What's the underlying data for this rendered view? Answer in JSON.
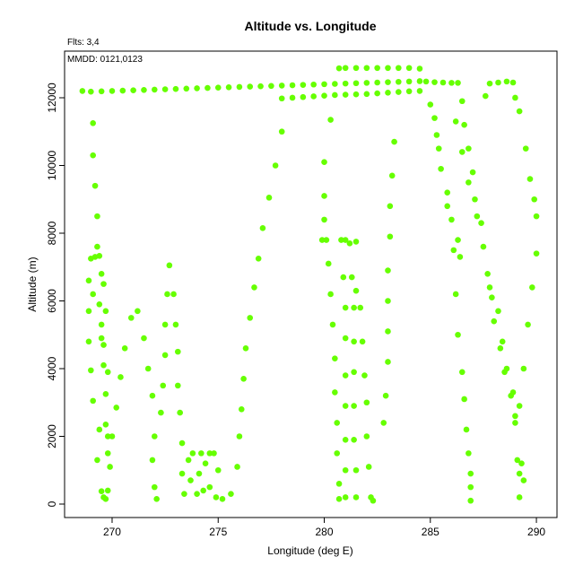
{
  "chart_data": {
    "type": "scatter",
    "title": "Altitude vs. Longitude",
    "annotations": [
      "Flts: 3,4",
      "MMDD: 0121,0123"
    ],
    "x_label": "Longitude (deg E)",
    "y_label": "Altitude (m)",
    "color": "#66ff00",
    "xlim": [
      267.76,
      290.97
    ],
    "ylim": [
      -397,
      13377
    ],
    "xticks": [
      270,
      275,
      280,
      285,
      290
    ],
    "yticks": [
      0,
      2000,
      4000,
      6000,
      8000,
      10000,
      12000
    ],
    "x": [
      268.6,
      269.0,
      269.5,
      270.0,
      270.5,
      271.0,
      271.5,
      272.0,
      272.5,
      273.0,
      273.5,
      274.0,
      274.5,
      275.0,
      275.5,
      276.0,
      276.5,
      277.0,
      277.5,
      278.0,
      278.5,
      279.0,
      279.5,
      280.0,
      280.5,
      281.0,
      281.5,
      282.0,
      282.5,
      283.0,
      283.5,
      284.0,
      284.5,
      278.0,
      278.5,
      279.0,
      279.5,
      280.0,
      280.5,
      281.0,
      281.5,
      282.0,
      282.5,
      283.0,
      283.5,
      284.0,
      284.5,
      280.7,
      281.0,
      281.5,
      282.0,
      282.5,
      283.0,
      283.5,
      284.0,
      284.5,
      284.8,
      285.2,
      285.6,
      286.0,
      286.3,
      287.8,
      288.2,
      288.6,
      288.9,
      269.1,
      269.1,
      269.2,
      269.3,
      269.3,
      269.0,
      269.2,
      269.4,
      269.5,
      268.9,
      269.6,
      269.1,
      269.4,
      268.9,
      269.7,
      269.5,
      268.9,
      269.5,
      269.6,
      269.0,
      269.6,
      269.8,
      269.1,
      269.7,
      269.4,
      269.7,
      269.8,
      269.3,
      269.8,
      269.9,
      269.5,
      269.8,
      269.7,
      269.6,
      270.2,
      270.4,
      270.0,
      270.6,
      270.9,
      271.2,
      271.5,
      271.7,
      271.9,
      272.0,
      271.9,
      272.0,
      272.1,
      272.3,
      272.4,
      272.5,
      272.5,
      272.6,
      272.7,
      272.9,
      273.0,
      273.1,
      273.1,
      273.2,
      273.3,
      273.3,
      273.4,
      273.6,
      273.8,
      274.2,
      274.4,
      274.6,
      274.8,
      274.0,
      274.3,
      274.6,
      274.9,
      275.2,
      275.6,
      273.7,
      274.1,
      275.0,
      275.9,
      276.0,
      276.1,
      276.2,
      276.3,
      276.5,
      276.7,
      276.9,
      277.1,
      277.4,
      277.7,
      278.0,
      280.0,
      280.0,
      280.0,
      279.9,
      280.1,
      280.2,
      280.3,
      280.4,
      280.5,
      280.5,
      280.6,
      280.6,
      280.7,
      280.7,
      280.3,
      280.8,
      281.0,
      281.2,
      281.5,
      280.9,
      281.3,
      281.5,
      281.0,
      281.4,
      281.7,
      281.0,
      281.4,
      281.8,
      281.0,
      281.4,
      281.9,
      281.0,
      281.4,
      282.0,
      281.0,
      281.4,
      282.0,
      281.0,
      281.5,
      282.1,
      281.0,
      281.5,
      282.2,
      282.3,
      282.8,
      282.9,
      283.0,
      283.0,
      283.0,
      283.0,
      283.1,
      283.1,
      283.2,
      283.3,
      285.0,
      285.2,
      285.3,
      285.4,
      285.5,
      285.8,
      285.8,
      286.0,
      286.1,
      286.2,
      286.3,
      286.4,
      286.3,
      286.5,
      286.6,
      286.7,
      286.8,
      286.9,
      286.9,
      286.9,
      286.2,
      286.5,
      286.6,
      286.5,
      286.8,
      286.8,
      287.0,
      287.1,
      287.2,
      287.4,
      287.5,
      287.7,
      287.8,
      287.9,
      288.0,
      288.2,
      288.3,
      288.4,
      288.5,
      288.6,
      288.8,
      288.9,
      289.0,
      289.0,
      289.2,
      289.1,
      289.3,
      289.2,
      289.4,
      289.2,
      289.4,
      289.6,
      289.8,
      290.0,
      290.0,
      289.9,
      289.7,
      289.5,
      289.2,
      289.0,
      287.6
    ],
    "values": [
      12200,
      12180,
      12190,
      12200,
      12210,
      12220,
      12230,
      12240,
      12250,
      12260,
      12270,
      12280,
      12290,
      12300,
      12310,
      12320,
      12330,
      12340,
      12350,
      12360,
      12370,
      12380,
      12390,
      12400,
      12410,
      12420,
      12430,
      12440,
      12450,
      12460,
      12470,
      12480,
      12490,
      11980,
      12000,
      12020,
      12040,
      12060,
      12080,
      12090,
      12100,
      12110,
      12130,
      12150,
      12170,
      12190,
      12200,
      12870,
      12880,
      12880,
      12880,
      12880,
      12880,
      12880,
      12880,
      12860,
      12480,
      12460,
      12450,
      12440,
      12440,
      12420,
      12450,
      12480,
      12450,
      11250,
      10300,
      9400,
      8500,
      7600,
      7250,
      7300,
      7330,
      6800,
      6600,
      6500,
      6200,
      5900,
      5700,
      5700,
      5300,
      4800,
      4900,
      4700,
      3950,
      4100,
      3900,
      3050,
      3250,
      2200,
      2350,
      2000,
      1300,
      1500,
      1100,
      380,
      400,
      150,
      200,
      2850,
      3750,
      2000,
      4600,
      5500,
      5700,
      4900,
      4000,
      3200,
      2000,
      1300,
      500,
      150,
      2700,
      3500,
      4400,
      5300,
      6200,
      7050,
      6200,
      5300,
      4500,
      3500,
      2700,
      1800,
      900,
      300,
      1300,
      1500,
      1500,
      1200,
      1500,
      1500,
      300,
      400,
      500,
      200,
      150,
      300,
      700,
      900,
      1000,
      1100,
      2000,
      2800,
      3700,
      4600,
      5500,
      6400,
      7250,
      8150,
      9050,
      10000,
      11000,
      10100,
      9100,
      8400,
      7800,
      7800,
      7100,
      6200,
      5300,
      4300,
      3300,
      2400,
      1500,
      600,
      150,
      11350,
      7800,
      7800,
      7700,
      7750,
      6700,
      6700,
      6300,
      5800,
      5800,
      5800,
      4900,
      4800,
      4800,
      3800,
      3900,
      3800,
      2900,
      2900,
      3000,
      1900,
      1900,
      2000,
      1000,
      1000,
      1100,
      200,
      200,
      200,
      100,
      2400,
      3200,
      4200,
      5100,
      6000,
      6900,
      7900,
      8800,
      9700,
      10700,
      11800,
      11400,
      10900,
      10500,
      9900,
      9200,
      8800,
      8400,
      7500,
      6200,
      7800,
      7300,
      5000,
      3900,
      3100,
      2200,
      1500,
      900,
      500,
      100,
      11300,
      11900,
      11200,
      10400,
      10500,
      9500,
      9800,
      9000,
      8500,
      8300,
      7600,
      6800,
      6400,
      6100,
      5400,
      5700,
      4600,
      4800,
      3900,
      4000,
      3200,
      3300,
      2600,
      2400,
      2900,
      1300,
      1200,
      900,
      700,
      200,
      4000,
      5300,
      6400,
      7400,
      8500,
      9000,
      9600,
      10500,
      11600,
      12000,
      12050
    ]
  }
}
